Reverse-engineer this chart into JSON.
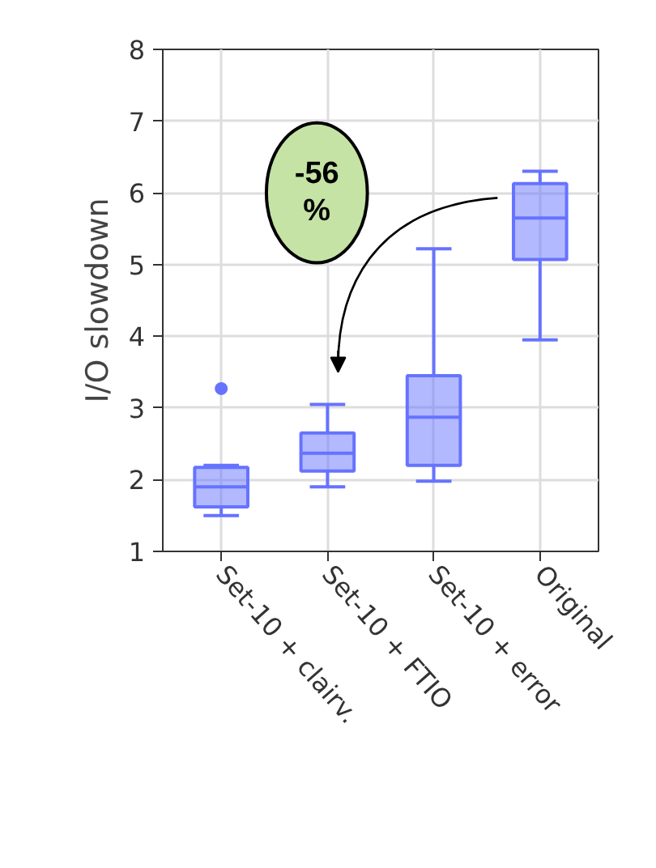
{
  "chart_data": {
    "type": "box",
    "ylabel": "I/O slowdown",
    "categories": [
      "Set-10 + clairv.",
      "Set-10 + FTIO",
      "Set-10 + error",
      "Original"
    ],
    "series": [
      {
        "color": "#6673ff",
        "boxes": [
          {
            "low": 1.5,
            "q1": 1.62,
            "median": 1.9,
            "q3": 2.17,
            "high": 2.2,
            "outliers": [
              3.27
            ]
          },
          {
            "low": 1.9,
            "q1": 2.12,
            "median": 2.37,
            "q3": 2.65,
            "high": 3.05
          },
          {
            "low": 1.98,
            "q1": 2.2,
            "median": 2.87,
            "q3": 3.45,
            "high": 5.22
          },
          {
            "low": 3.95,
            "q1": 5.07,
            "median": 5.65,
            "q3": 6.13,
            "high": 6.3
          }
        ]
      }
    ],
    "ylim": [
      1,
      8
    ],
    "yticks": [
      1,
      2,
      3,
      4,
      5,
      6,
      7,
      8
    ],
    "grid": true,
    "annotations": [
      "-56\n%"
    ]
  }
}
